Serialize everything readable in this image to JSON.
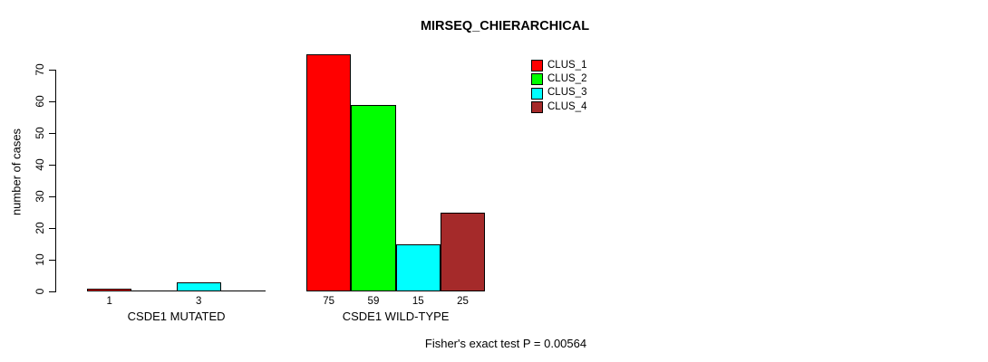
{
  "chart_data": {
    "type": "bar",
    "title": "MIRSEQ_CHIERARCHICAL",
    "ylabel": "number of cases",
    "xlabel": "",
    "ylim": [
      0,
      70
    ],
    "yticks": [
      0,
      10,
      20,
      30,
      40,
      50,
      60,
      70
    ],
    "grid": false,
    "legend_position": "top-right",
    "legend": [
      {
        "label": "CLUS_1",
        "color": "#ff0000"
      },
      {
        "label": "CLUS_2",
        "color": "#00ff00"
      },
      {
        "label": "CLUS_3",
        "color": "#00ffff"
      },
      {
        "label": "CLUS_4",
        "color": "#a52a2a"
      }
    ],
    "categories": [
      "CSDE1 MUTATED",
      "CSDE1 WILD-TYPE"
    ],
    "series": [
      {
        "name": "CLUS_1",
        "values": [
          1,
          75
        ]
      },
      {
        "name": "CLUS_2",
        "values": [
          0,
          59
        ]
      },
      {
        "name": "CLUS_3",
        "values": [
          3,
          15
        ]
      },
      {
        "name": "CLUS_4",
        "values": [
          0,
          25
        ]
      }
    ],
    "groups": [
      {
        "label": "CSDE1 MUTATED",
        "values": [
          1,
          0,
          3,
          0
        ],
        "bar_labels": [
          "1",
          "",
          "3",
          ""
        ]
      },
      {
        "label": "CSDE1 WILD-TYPE",
        "values": [
          75,
          59,
          15,
          25
        ],
        "bar_labels": [
          "75",
          "59",
          "15",
          "25"
        ]
      }
    ],
    "annotation": "Fisher's exact test P = 0.00564",
    "axis_color": "#000000",
    "bar_border_color": "#000000"
  }
}
